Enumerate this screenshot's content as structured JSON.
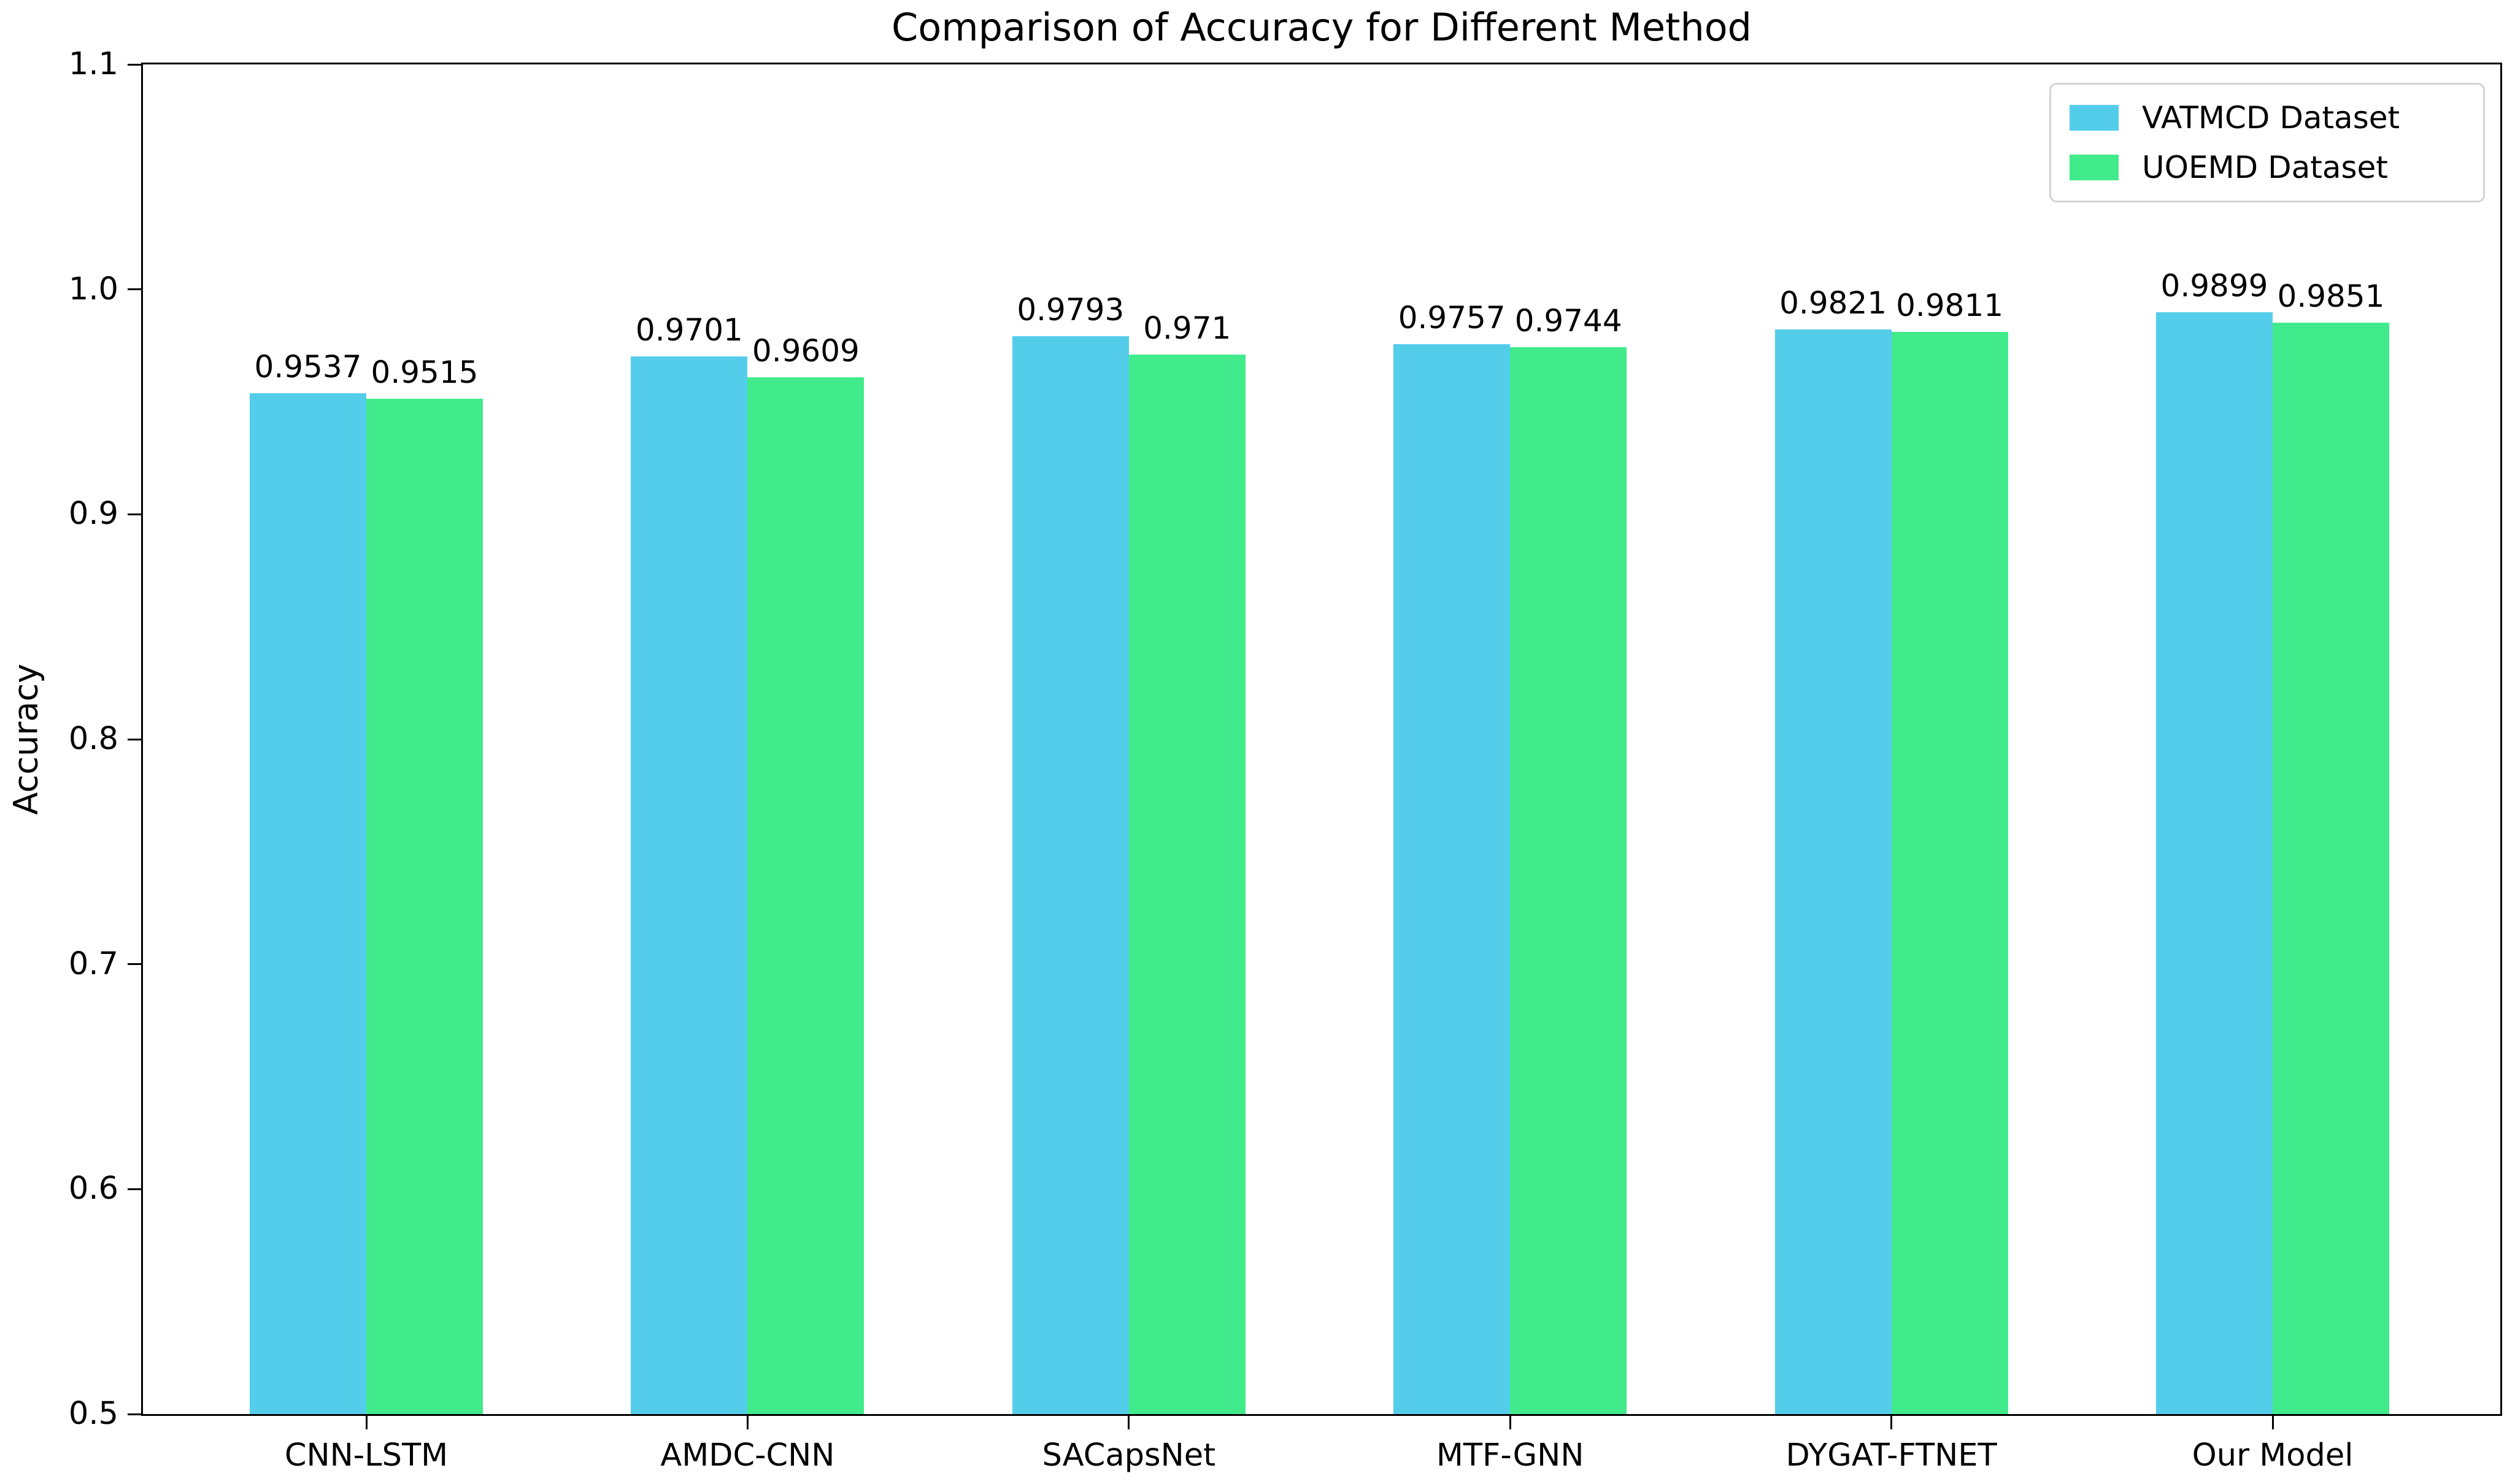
{
  "title": "Comparison of Accuracy for Different Method",
  "chart_data": {
    "type": "bar",
    "title": "Comparison of Accuracy for Different Method",
    "xlabel": "",
    "ylabel": "Accuracy",
    "ylim": [
      0.5,
      1.1
    ],
    "ytick_labels": [
      "0.5",
      "0.6",
      "0.7",
      "0.8",
      "0.9",
      "1.0",
      "1.1"
    ],
    "grid": false,
    "legend_position": "upper right",
    "categories": [
      "CNN-LSTM",
      "AMDC-CNN",
      "SACapsNet",
      "MTF-GNN",
      "DYGAT-FTNET",
      "Our Model"
    ],
    "series": [
      {
        "name": "VATMCD Dataset",
        "color": "#54CDEB",
        "values": [
          0.9537,
          0.9701,
          0.9793,
          0.9757,
          0.9821,
          0.9899
        ],
        "labels": [
          "0.9537",
          "0.9701",
          "0.9793",
          "0.9757",
          "0.9821",
          "0.9899"
        ]
      },
      {
        "name": "UOEMD Dataset",
        "color": "#41EB8B",
        "values": [
          0.9515,
          0.9609,
          0.971,
          0.9744,
          0.9811,
          0.9851
        ],
        "labels": [
          "0.9515",
          "0.9609",
          "0.971",
          "0.9744",
          "0.9811",
          "0.9851"
        ]
      }
    ]
  }
}
